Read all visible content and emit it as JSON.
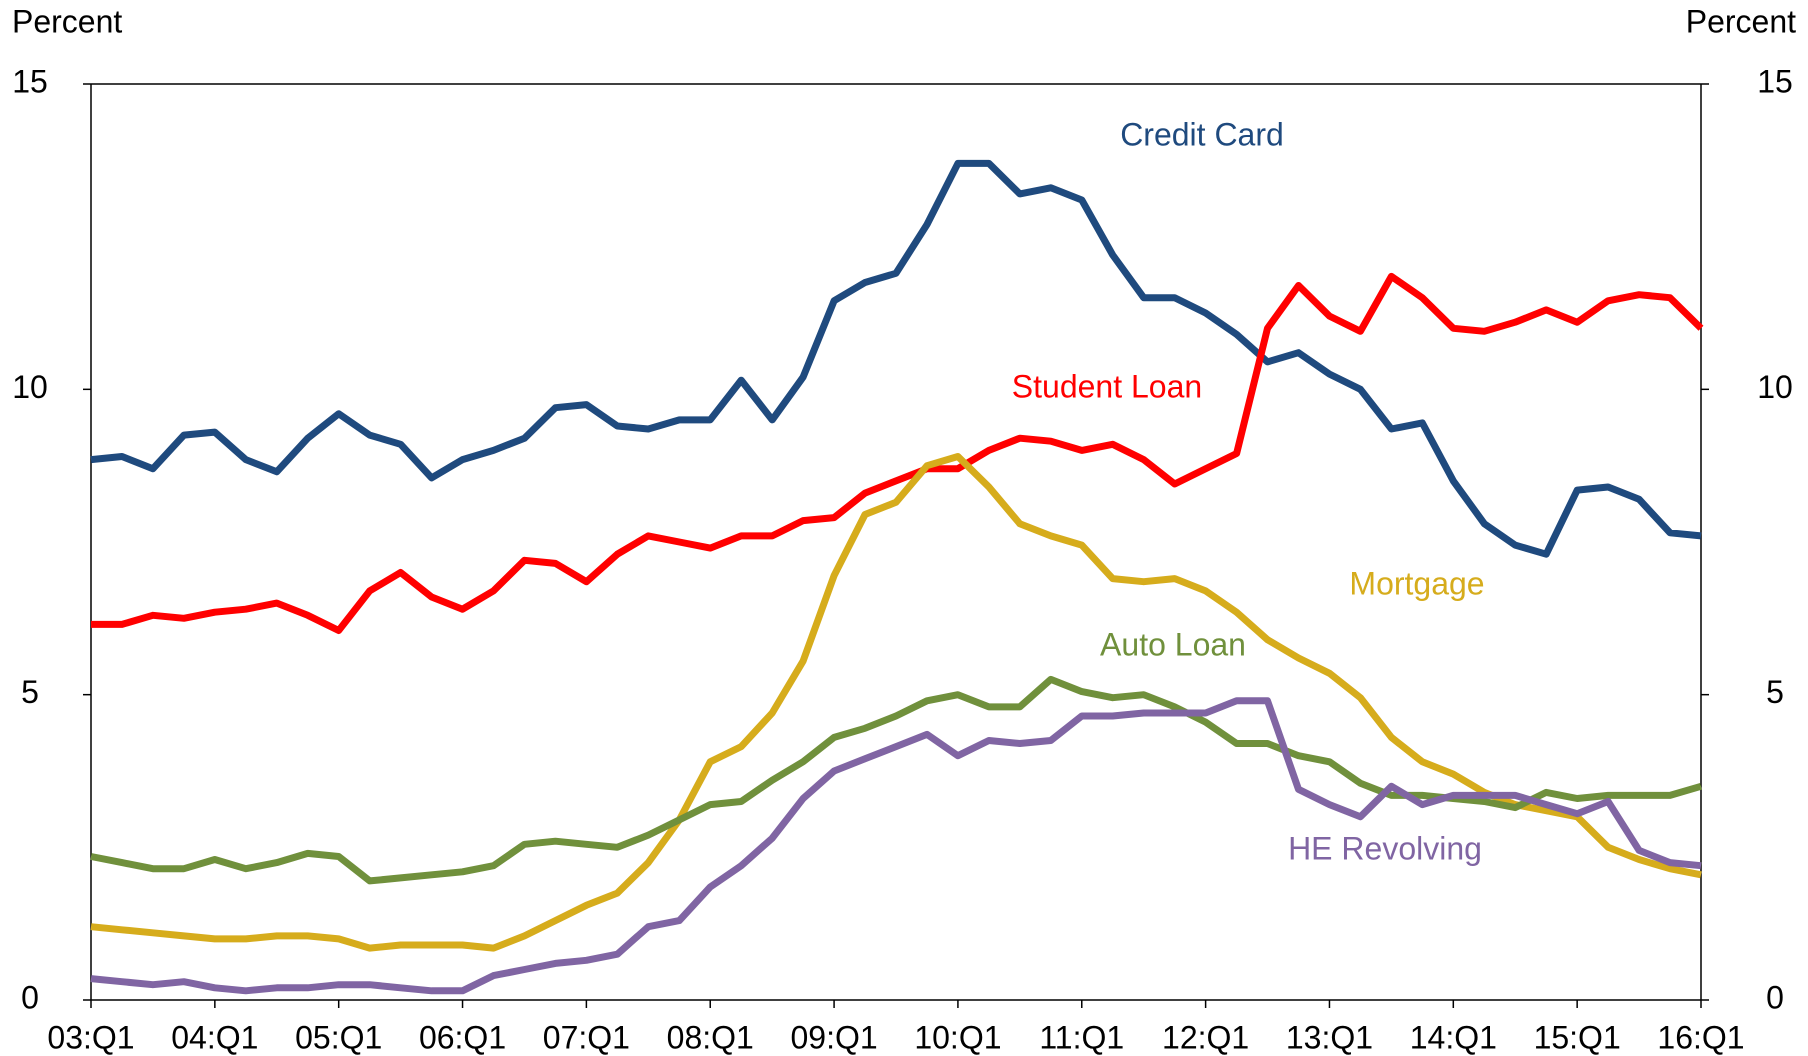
{
  "chart_data": {
    "type": "line",
    "y_label": "Percent",
    "y2_label": "Percent",
    "categories": [
      "03:Q1",
      null,
      null,
      null,
      "04:Q1",
      null,
      null,
      null,
      "05:Q1",
      null,
      null,
      null,
      "06:Q1",
      null,
      null,
      null,
      "07:Q1",
      null,
      null,
      null,
      "08:Q1",
      null,
      null,
      null,
      "09:Q1",
      null,
      null,
      null,
      "10:Q1",
      null,
      null,
      null,
      "11:Q1",
      null,
      null,
      null,
      "12:Q1",
      null,
      null,
      null,
      "13:Q1",
      null,
      null,
      null,
      "14:Q1",
      null,
      null,
      null,
      "15:Q1",
      null,
      null,
      null,
      "16:Q1"
    ],
    "series": [
      {
        "name": "Credit Card",
        "color": "#1f4a7e",
        "values": [
          8.85,
          8.9,
          8.7,
          9.25,
          9.3,
          8.85,
          8.65,
          9.2,
          9.6,
          9.25,
          9.1,
          8.55,
          8.85,
          9.0,
          9.2,
          9.7,
          9.75,
          9.4,
          9.35,
          9.5,
          9.5,
          10.15,
          9.5,
          10.2,
          11.45,
          11.75,
          11.9,
          12.7,
          13.7,
          13.7,
          13.2,
          13.3,
          13.1,
          12.2,
          11.5,
          11.5,
          11.25,
          10.9,
          10.45,
          10.6,
          10.25,
          10.0,
          9.35,
          9.45,
          8.5,
          7.8,
          7.45,
          7.3,
          8.35,
          8.4,
          8.2,
          7.65,
          7.6
        ]
      },
      {
        "name": "Student Loan",
        "color": "#ff0000",
        "values": [
          6.15,
          6.15,
          6.3,
          6.25,
          6.35,
          6.4,
          6.5,
          6.3,
          6.05,
          6.7,
          7.0,
          6.6,
          6.4,
          6.7,
          7.2,
          7.15,
          6.85,
          7.3,
          7.6,
          7.5,
          7.4,
          7.6,
          7.6,
          7.85,
          7.9,
          8.3,
          8.5,
          8.7,
          8.7,
          9.0,
          9.2,
          9.15,
          9.0,
          9.1,
          8.85,
          8.45,
          8.7,
          8.95,
          11.0,
          11.7,
          11.2,
          10.95,
          11.85,
          11.5,
          11.0,
          10.95,
          11.1,
          11.3,
          11.1,
          11.45,
          11.55,
          11.5,
          11.0
        ]
      },
      {
        "name": "Mortgage",
        "color": "#d6ac1c",
        "values": [
          1.2,
          1.15,
          1.1,
          1.05,
          1.0,
          1.0,
          1.05,
          1.05,
          1.0,
          0.85,
          0.9,
          0.9,
          0.9,
          0.85,
          1.05,
          1.3,
          1.55,
          1.75,
          2.25,
          2.95,
          3.9,
          4.15,
          4.7,
          5.55,
          6.95,
          7.95,
          8.15,
          8.75,
          8.9,
          8.4,
          7.8,
          7.6,
          7.45,
          6.9,
          6.85,
          6.9,
          6.7,
          6.35,
          5.9,
          5.6,
          5.35,
          4.95,
          4.3,
          3.9,
          3.7,
          3.4,
          3.2,
          3.1,
          3.0,
          2.5,
          2.3,
          2.15,
          2.05
        ]
      },
      {
        "name": "Auto Loan",
        "color": "#70903c",
        "values": [
          2.35,
          2.25,
          2.15,
          2.15,
          2.3,
          2.15,
          2.25,
          2.4,
          2.35,
          1.95,
          2.0,
          2.05,
          2.1,
          2.2,
          2.55,
          2.6,
          2.55,
          2.5,
          2.7,
          2.95,
          3.2,
          3.25,
          3.6,
          3.9,
          4.3,
          4.45,
          4.65,
          4.9,
          5.0,
          4.8,
          4.8,
          5.25,
          5.05,
          4.95,
          5.0,
          4.8,
          4.55,
          4.2,
          4.2,
          4.0,
          3.9,
          3.55,
          3.35,
          3.35,
          3.3,
          3.25,
          3.15,
          3.4,
          3.3,
          3.35,
          3.35,
          3.35,
          3.5
        ]
      },
      {
        "name": "HE Revolving",
        "color": "#8065a3",
        "values": [
          0.35,
          0.3,
          0.25,
          0.3,
          0.2,
          0.15,
          0.2,
          0.2,
          0.25,
          0.25,
          0.2,
          0.15,
          0.15,
          0.4,
          0.5,
          0.6,
          0.65,
          0.75,
          1.2,
          1.3,
          1.85,
          2.2,
          2.65,
          3.3,
          3.75,
          3.95,
          4.15,
          4.35,
          4.0,
          4.25,
          4.2,
          4.25,
          4.65,
          4.65,
          4.7,
          4.7,
          4.7,
          4.9,
          4.9,
          3.45,
          3.2,
          3.0,
          3.5,
          3.2,
          3.35,
          3.35,
          3.35,
          3.2,
          3.05,
          3.25,
          2.45,
          2.25,
          2.2
        ]
      }
    ],
    "ylim": [
      0,
      15
    ],
    "yticks": [
      0,
      5,
      10,
      15
    ],
    "y2lim": [
      0,
      15
    ],
    "y2ticks": [
      0,
      5,
      10,
      15
    ]
  }
}
